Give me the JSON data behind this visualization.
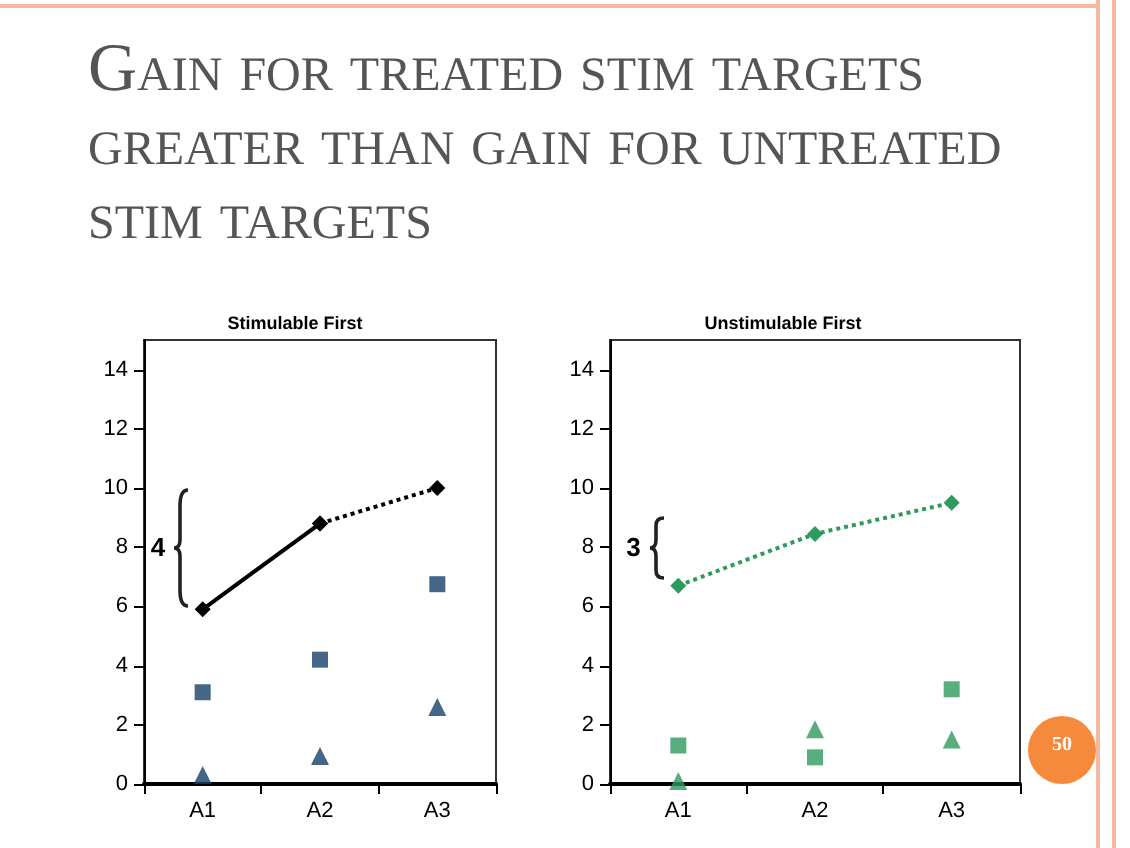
{
  "chart_data": [
    {
      "type": "scatter",
      "title": "Stimulable First",
      "categories": [
        "A1",
        "A2",
        "A3"
      ],
      "ylim": [
        0,
        15
      ],
      "yticks": [
        0,
        2,
        4,
        6,
        8,
        10,
        12,
        14
      ],
      "grid": false,
      "annotations": [
        "Gain for treated stim targets greater than gain for untreated stim targets",
        "4"
      ],
      "series": [
        {
          "type": "line",
          "color": "#000000",
          "x": [
            "A1",
            "A2"
          ],
          "values": [
            5.9,
            8.8
          ],
          "marker": "diamond",
          "line_style": "solid"
        },
        {
          "type": "line",
          "color": "#000000",
          "x": [
            "A2",
            "A3"
          ],
          "values": [
            8.8,
            10.0
          ],
          "marker": "diamond",
          "line_style": "dotted"
        },
        {
          "type": "scatter",
          "color": "#17406b",
          "values": [
            3.1,
            4.2,
            6.75
          ],
          "marker": "square"
        },
        {
          "type": "scatter",
          "color": "#17406b",
          "values": [
            0.3,
            0.95,
            2.6
          ],
          "marker": "triangle"
        }
      ]
    },
    {
      "type": "scatter",
      "title": "Unstimulable First",
      "categories": [
        "A1",
        "A2",
        "A3"
      ],
      "ylim": [
        0,
        15
      ],
      "yticks": [
        0,
        2,
        4,
        6,
        8,
        10,
        12,
        14
      ],
      "grid": false,
      "annotations": [
        "3",
        "50"
      ],
      "series": [
        {
          "type": "line",
          "color": "#2e9a5e",
          "values": [
            6.7,
            8.45,
            9.5
          ],
          "marker": "diamond",
          "line_style": "dotted"
        },
        {
          "type": "scatter",
          "color": "#2e9a5e",
          "values": [
            1.3,
            0.9,
            3.2
          ],
          "marker": "square"
        },
        {
          "type": "scatter",
          "color": "#2e9a5e",
          "values": [
            0.1,
            1.85,
            1.5
          ],
          "marker": "triangle"
        }
      ]
    }
  ]
}
